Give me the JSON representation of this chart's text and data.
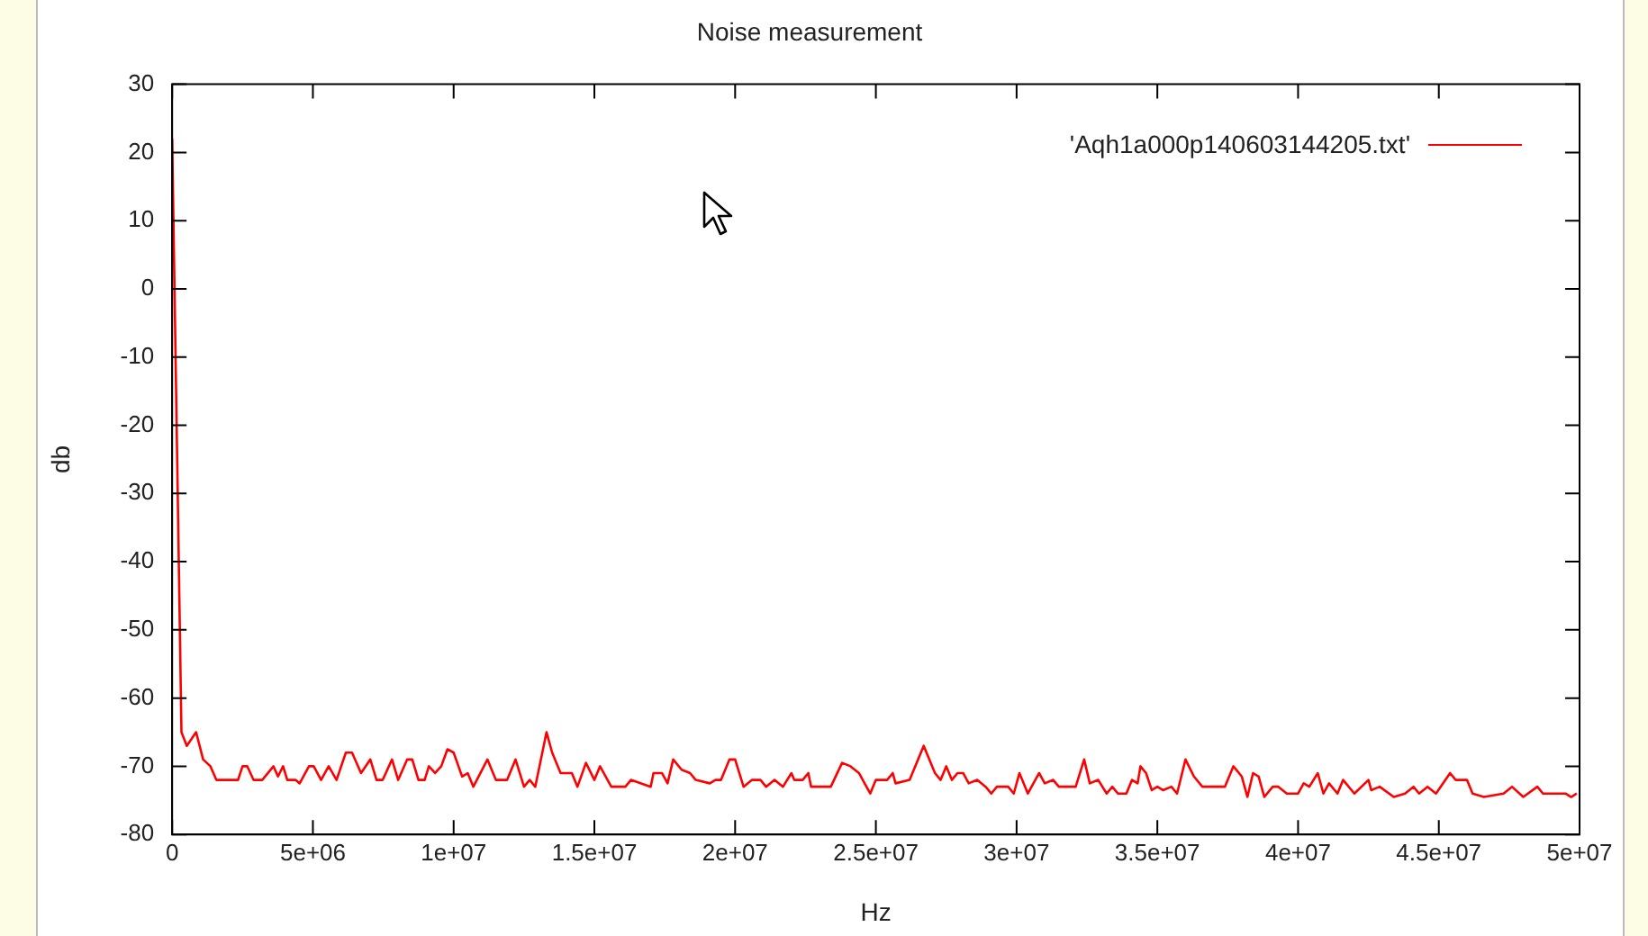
{
  "chart_data": {
    "type": "line",
    "title": "Noise measurement",
    "xlabel": "Hz",
    "ylabel": "db",
    "xlim": [
      0,
      50000000
    ],
    "ylim": [
      -80,
      30
    ],
    "xticks": [
      0,
      {
        "value": 5000000,
        "label": "5e+06"
      },
      {
        "value": 10000000,
        "label": "1e+07"
      },
      {
        "value": 15000000,
        "label": "1.5e+07"
      },
      {
        "value": 20000000,
        "label": "2e+07"
      },
      {
        "value": 25000000,
        "label": "2.5e+07"
      },
      {
        "value": 30000000,
        "label": "3e+07"
      },
      {
        "value": 35000000,
        "label": "3.5e+07"
      },
      {
        "value": 40000000,
        "label": "4e+07"
      },
      {
        "value": 45000000,
        "label": "4.5e+07"
      },
      {
        "value": 50000000,
        "label": "5e+07"
      }
    ],
    "yticks": [
      -80,
      -70,
      -60,
      -50,
      -40,
      -30,
      -20,
      -10,
      0,
      10,
      20,
      30
    ],
    "grid": false,
    "legend": "top right",
    "marker": "none",
    "line_style": "solid",
    "series": [
      {
        "name": "'Aqh1a000p140603144205.txt'",
        "color": "#ff0000",
        "x": [
          0,
          330000,
          520000,
          850000,
          1100000,
          1360000,
          1570000,
          2340000,
          2500000,
          2670000,
          2890000,
          3200000,
          3600000,
          3760000,
          3940000,
          4090000,
          4380000,
          4530000,
          4860000,
          5030000,
          5290000,
          5560000,
          5840000,
          6170000,
          6390000,
          6710000,
          7040000,
          7260000,
          7480000,
          7810000,
          8030000,
          8350000,
          8530000,
          8750000,
          8970000,
          9120000,
          9340000,
          9560000,
          9780000,
          10000000,
          10300000,
          10500000,
          10700000,
          11200000,
          11500000,
          11900000,
          12200000,
          12500000,
          12700000,
          12900000,
          13300000,
          13500000,
          13800000,
          14200000,
          14400000,
          14700000,
          15000000,
          15200000,
          15600000,
          16100000,
          16300000,
          17000000,
          17100000,
          17400000,
          17600000,
          17800000,
          18100000,
          18400000,
          18600000,
          19100000,
          19300000,
          19500000,
          19800000,
          20000000,
          20300000,
          20600000,
          20900000,
          21100000,
          21400000,
          21700000,
          22000000,
          22100000,
          22400000,
          22600000,
          22700000,
          23400000,
          23800000,
          24100000,
          24400000,
          24600000,
          24800000,
          25000000,
          25400000,
          25600000,
          25700000,
          26200000,
          26700000,
          27100000,
          27300000,
          27500000,
          27700000,
          27900000,
          28100000,
          28300000,
          28600000,
          28900000,
          29100000,
          29300000,
          29700000,
          29900000,
          30100000,
          30200000,
          30400000,
          30800000,
          31000000,
          31300000,
          31500000,
          32100000,
          32400000,
          32600000,
          32900000,
          33200000,
          33400000,
          33600000,
          33900000,
          34100000,
          34300000,
          34400000,
          34600000,
          34800000,
          35000000,
          35200000,
          35500000,
          35700000,
          36000000,
          36300000,
          36600000,
          36800000,
          37400000,
          37700000,
          38000000,
          38200000,
          38400000,
          38600000,
          38800000,
          39100000,
          39300000,
          39600000,
          40000000,
          40200000,
          40400000,
          40700000,
          40900000,
          41100000,
          41400000,
          41600000,
          42000000,
          42500000,
          42600000,
          42900000,
          43400000,
          43800000,
          44100000,
          44300000,
          44600000,
          44900000,
          45400000,
          45600000,
          46000000,
          46200000,
          46600000,
          47300000,
          47600000,
          48000000,
          48500000,
          48700000,
          49500000,
          49700000,
          49900000
        ],
        "values": [
          22,
          -65,
          -67,
          -65,
          -69,
          -70,
          -72,
          -72,
          -70,
          -70,
          -72,
          -72,
          -70,
          -71.5,
          -70,
          -72,
          -72,
          -72.5,
          -70,
          -70,
          -72,
          -70,
          -72,
          -68,
          -68,
          -71,
          -69,
          -72,
          -72,
          -69,
          -72,
          -69,
          -69,
          -72,
          -72,
          -70,
          -71,
          -70,
          -67.5,
          -68,
          -71.5,
          -71,
          -73,
          -69,
          -72,
          -72,
          -69,
          -73,
          -72,
          -73,
          -65,
          -68,
          -71,
          -71,
          -73,
          -69.5,
          -72,
          -70,
          -73,
          -73,
          -72,
          -73,
          -71,
          -71,
          -72.5,
          -69,
          -70.5,
          -71,
          -72,
          -72.5,
          -72,
          -72,
          -69,
          -69,
          -73,
          -72,
          -72,
          -73,
          -72,
          -73,
          -71,
          -72,
          -72,
          -71,
          -73,
          -73,
          -69.5,
          -70,
          -71,
          -72.5,
          -74,
          -72,
          -72,
          -71,
          -72.5,
          -72,
          -67,
          -71,
          -72,
          -70,
          -72,
          -71,
          -71,
          -72.5,
          -72,
          -73,
          -74,
          -73,
          -73,
          -74,
          -71,
          -72,
          -74,
          -71,
          -72.5,
          -72,
          -73,
          -73,
          -69,
          -72.5,
          -72,
          -74,
          -73,
          -74,
          -74,
          -72,
          -72.5,
          -70,
          -71,
          -73.5,
          -73,
          -73.5,
          -73,
          -74,
          -69,
          -71.5,
          -73,
          -73,
          -73,
          -70,
          -71.5,
          -74.5,
          -71,
          -71.5,
          -74.5,
          -73,
          -73,
          -74,
          -74,
          -72.5,
          -73,
          -71,
          -74,
          -72.5,
          -74,
          -72,
          -74,
          -72,
          -73.5,
          -73,
          -74.5,
          -74,
          -73,
          -74,
          -73,
          -74,
          -71,
          -72,
          -72,
          -74,
          -74.5,
          -74,
          -73,
          -74.5,
          -73,
          -74,
          -74,
          -74.5,
          -74
        ]
      }
    ]
  }
}
